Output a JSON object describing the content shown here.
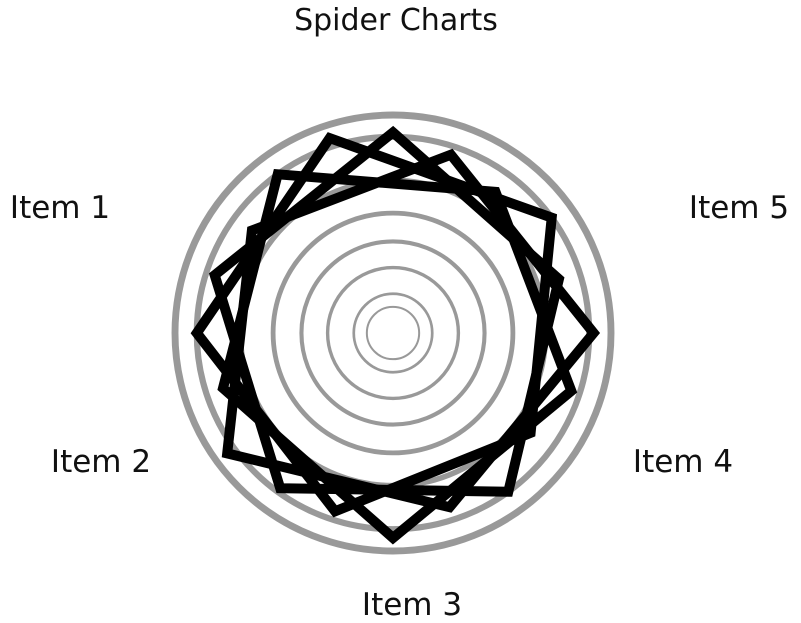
{
  "chart_data": {
    "type": "radar",
    "title": "Spider Charts",
    "categories": [
      "Item 1",
      "Item 2",
      "Item 3",
      "Item 4",
      "Item 5"
    ],
    "scale": {
      "min": 0,
      "max": 100
    },
    "grid": true,
    "grid_rings": [
      12,
      18,
      30,
      42,
      55,
      70,
      90,
      100
    ],
    "ring_color": "#999999",
    "series_color": "#000000",
    "series": [
      {
        "values": [
          92,
          80,
          90,
          88,
          86
        ]
      },
      {
        "values": [
          86,
          92,
          84,
          94,
          80
        ]
      },
      {
        "values": [
          80,
          86,
          94,
          82,
          90
        ]
      },
      {
        "values": [
          90,
          78,
          86,
          90,
          94
        ]
      }
    ]
  }
}
